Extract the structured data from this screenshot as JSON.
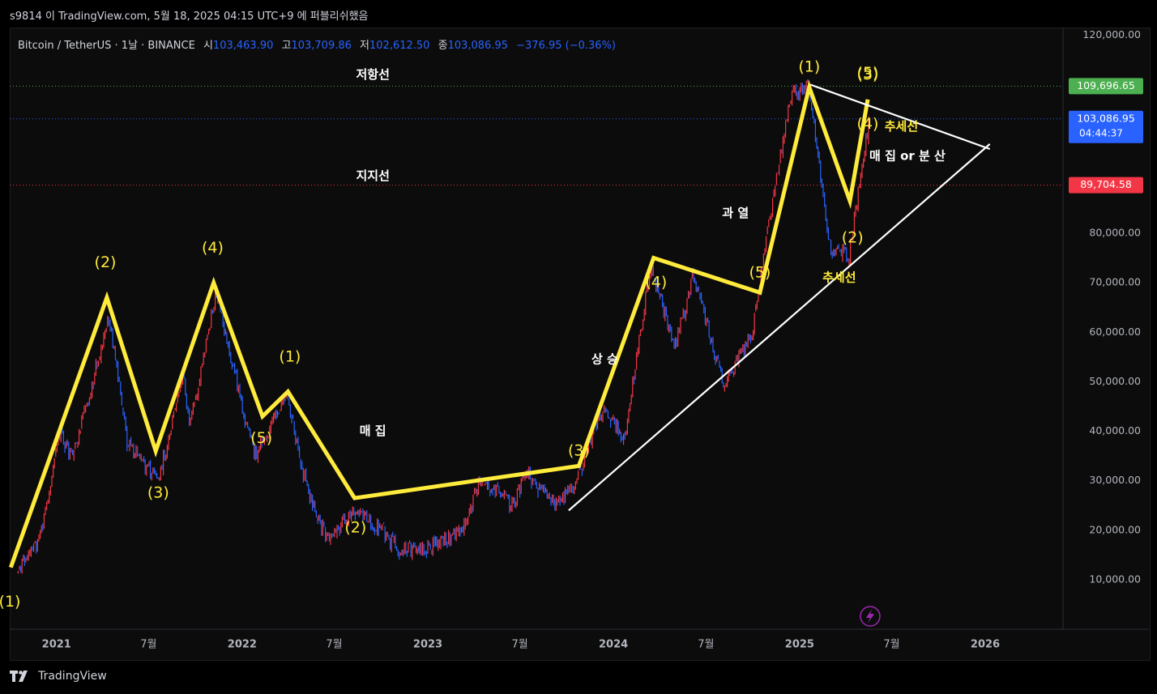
{
  "header": {
    "publish_text": "s9814 이 TradingView.com, 5월 18, 2025 04:15 UTC+9 에 퍼블리쉬했음"
  },
  "legend": {
    "symbol": "Bitcoin / TetherUS · 1날 · BINANCE",
    "open_label": "시",
    "open_value": "103,463.90",
    "high_label": "고",
    "high_value": "103,709.86",
    "low_label": "저",
    "low_value": "102,612.50",
    "close_label": "종",
    "close_value": "103,086.95",
    "change": "−376.95 (−0.36%)"
  },
  "footer": {
    "brand": "TradingView"
  },
  "colors": {
    "background": "#0c0c0c",
    "wave": "#ffeb3b",
    "trendline": "#ffffff",
    "resistance": "#4caf50",
    "support": "#f23645",
    "last_price": "#2962ff",
    "candle_up": "#f23645",
    "candle_down": "#2962ff"
  },
  "chart_data": {
    "type": "line",
    "x_axis": {
      "ticks": [
        {
          "label": "2021",
          "date": "2021-01-01"
        },
        {
          "label": "7월",
          "date": "2021-07-01"
        },
        {
          "label": "2022",
          "date": "2022-01-01"
        },
        {
          "label": "7월",
          "date": "2022-07-01"
        },
        {
          "label": "2023",
          "date": "2023-01-01"
        },
        {
          "label": "7월",
          "date": "2023-07-01"
        },
        {
          "label": "2024",
          "date": "2024-01-01"
        },
        {
          "label": "7월",
          "date": "2024-07-01"
        },
        {
          "label": "2025",
          "date": "2025-01-01"
        },
        {
          "label": "7월",
          "date": "2025-07-01"
        },
        {
          "label": "2026",
          "date": "2026-01-01"
        }
      ]
    },
    "y_axis": {
      "ticks": [
        {
          "label": "10,000.00",
          "value": 10000
        },
        {
          "label": "20,000.00",
          "value": 20000
        },
        {
          "label": "30,000.00",
          "value": 30000
        },
        {
          "label": "40,000.00",
          "value": 40000
        },
        {
          "label": "50,000.00",
          "value": 50000
        },
        {
          "label": "60,000.00",
          "value": 60000
        },
        {
          "label": "70,000.00",
          "value": 70000
        },
        {
          "label": "80,000.00",
          "value": 80000
        },
        {
          "label": "120,000.00",
          "value": 120000
        }
      ],
      "price_labels": [
        {
          "label": "109,696.65",
          "value": 109696.65,
          "color": "#4caf50"
        },
        {
          "label": "89,704.58",
          "value": 89704.58,
          "color": "#f23645"
        }
      ],
      "last_price": {
        "label": "103,086.95",
        "countdown": "04:44:37",
        "value": 103086.95
      }
    },
    "price_series": [
      {
        "date": "2020-10-15",
        "price": 11500
      },
      {
        "date": "2020-12-01",
        "price": 19000
      },
      {
        "date": "2021-01-08",
        "price": 40000
      },
      {
        "date": "2021-02-01",
        "price": 34000
      },
      {
        "date": "2021-04-14",
        "price": 63000
      },
      {
        "date": "2021-05-20",
        "price": 38000
      },
      {
        "date": "2021-07-20",
        "price": 30000
      },
      {
        "date": "2021-09-07",
        "price": 51000
      },
      {
        "date": "2021-09-21",
        "price": 41000
      },
      {
        "date": "2021-11-10",
        "price": 68000
      },
      {
        "date": "2022-01-24",
        "price": 35000
      },
      {
        "date": "2022-03-28",
        "price": 47000
      },
      {
        "date": "2022-05-12",
        "price": 27000
      },
      {
        "date": "2022-06-18",
        "price": 18000
      },
      {
        "date": "2022-08-15",
        "price": 24500
      },
      {
        "date": "2022-11-09",
        "price": 16000
      },
      {
        "date": "2022-12-31",
        "price": 16500
      },
      {
        "date": "2023-03-10",
        "price": 20000
      },
      {
        "date": "2023-04-14",
        "price": 30500
      },
      {
        "date": "2023-06-15",
        "price": 25000
      },
      {
        "date": "2023-07-14",
        "price": 31500
      },
      {
        "date": "2023-09-11",
        "price": 25000
      },
      {
        "date": "2023-10-20",
        "price": 30000
      },
      {
        "date": "2023-12-08",
        "price": 44000
      },
      {
        "date": "2024-01-23",
        "price": 39000
      },
      {
        "date": "2024-03-14",
        "price": 73000
      },
      {
        "date": "2024-05-01",
        "price": 57000
      },
      {
        "date": "2024-06-05",
        "price": 71500
      },
      {
        "date": "2024-08-05",
        "price": 49000
      },
      {
        "date": "2024-10-01",
        "price": 60000
      },
      {
        "date": "2024-11-12",
        "price": 89000
      },
      {
        "date": "2024-12-17",
        "price": 108000
      },
      {
        "date": "2025-01-20",
        "price": 109500
      },
      {
        "date": "2025-02-28",
        "price": 78000
      },
      {
        "date": "2025-04-07",
        "price": 75000
      },
      {
        "date": "2025-05-18",
        "price": 103087
      }
    ],
    "wave_path": [
      {
        "date": "2020-10-03",
        "price": 12500
      },
      {
        "date": "2021-04-10",
        "price": 67000
      },
      {
        "date": "2021-07-15",
        "price": 36000
      },
      {
        "date": "2021-11-06",
        "price": 70000
      },
      {
        "date": "2022-02-10",
        "price": 43000
      },
      {
        "date": "2022-04-01",
        "price": 48000
      },
      {
        "date": "2022-08-10",
        "price": 26500
      },
      {
        "date": "2023-10-25",
        "price": 33000
      },
      {
        "date": "2024-03-20",
        "price": 75000
      },
      {
        "date": "2024-10-15",
        "price": 68000
      },
      {
        "date": "2025-01-20",
        "price": 109500
      },
      {
        "date": "2025-04-10",
        "price": 86500
      },
      {
        "date": "2025-05-15",
        "price": 107000
      }
    ],
    "lines": [
      {
        "name": "저항선",
        "price": 109696.65,
        "style": "dotted",
        "color": "#4caf50"
      },
      {
        "name": "지지선",
        "price": 89704.58,
        "style": "dotted",
        "color": "#f23645"
      },
      {
        "name": "last",
        "price": 103086.95,
        "style": "dotted",
        "color": "#2962ff"
      }
    ],
    "trendlines": [
      {
        "from": {
          "date": "2023-10-05",
          "price": 24000
        },
        "to": {
          "date": "2026-01-10",
          "price": 98000
        }
      },
      {
        "from": {
          "date": "2025-01-22",
          "price": 110000
        },
        "to": {
          "date": "2026-01-10",
          "price": 97000
        }
      }
    ],
    "wave_labels": [
      {
        "text": "(1)",
        "date": "2020-10-01",
        "price": 5500
      },
      {
        "text": "(2)",
        "date": "2021-04-07",
        "price": 74000
      },
      {
        "text": "(3)",
        "date": "2021-07-20",
        "price": 27500
      },
      {
        "text": "(4)",
        "date": "2021-11-04",
        "price": 77000
      },
      {
        "text": "(5)",
        "date": "2022-02-08",
        "price": 38500
      },
      {
        "text": "(1)",
        "date": "2022-04-05",
        "price": 55000
      },
      {
        "text": "(2)",
        "date": "2022-08-12",
        "price": 20500
      },
      {
        "text": "(3)",
        "date": "2023-10-25",
        "price": 36000
      },
      {
        "text": "(4)",
        "date": "2024-03-25",
        "price": 70000
      },
      {
        "text": "(5)",
        "date": "2024-10-15",
        "price": 72000
      },
      {
        "text": "(1)",
        "date": "2025-01-20",
        "price": 113500
      },
      {
        "text": "(2)",
        "date": "2025-04-15",
        "price": 79000
      },
      {
        "text": "(3)",
        "date": "2025-05-15",
        "price": 112000
      },
      {
        "text": "(5)",
        "date": "2025-05-15",
        "price": 112300
      },
      {
        "text": "(4)",
        "date": "2025-05-15",
        "price": 102000
      }
    ],
    "annotations": [
      {
        "text": "저항선",
        "date": "2022-09-15",
        "price": 112000,
        "color": "#ffffff"
      },
      {
        "text": "지지선",
        "date": "2022-09-15",
        "price": 91500,
        "color": "#ffffff"
      },
      {
        "text": "매 집",
        "date": "2022-09-15",
        "price": 40000,
        "color": "#ffffff"
      },
      {
        "text": "상 승",
        "date": "2023-12-15",
        "price": 54500,
        "color": "#ffffff"
      },
      {
        "text": "과 열",
        "date": "2024-08-28",
        "price": 84000,
        "color": "#ffffff"
      },
      {
        "text": "추세선",
        "date": "2025-03-20",
        "price": 71000,
        "color": "#ffeb3b"
      },
      {
        "text": "추세선",
        "date": "2025-07-20",
        "price": 101500,
        "color": "#ffeb3b"
      },
      {
        "text": "매 집 or 분 산",
        "date": "2025-08-01",
        "price": 95500,
        "color": "#ffffff"
      }
    ]
  }
}
